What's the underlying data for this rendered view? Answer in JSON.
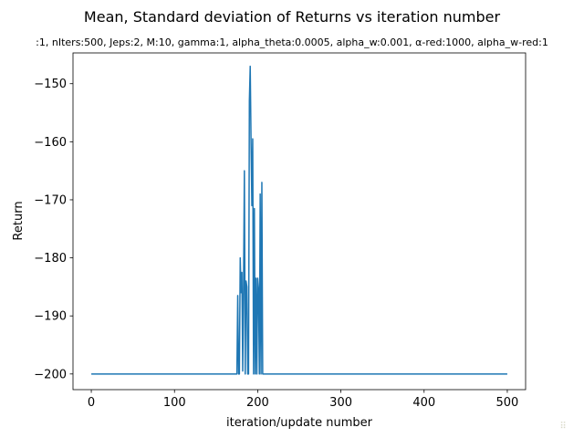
{
  "chart_data": {
    "type": "line",
    "title": "Mean, Standard deviation of Returns vs iteration number",
    "subtitle": ":1, nIters:500, Jeps:2, M:10, gamma:1, alpha_theta:0.0005, alpha_w:0.001, α-red:1000, alpha_w-red:1",
    "xlabel": "iteration/update number",
    "ylabel": "Return",
    "xlim": [
      -22,
      522
    ],
    "ylim": [
      -202.7,
      -144.7
    ],
    "xticks": [
      0,
      100,
      200,
      300,
      400,
      500
    ],
    "yticks": [
      -200,
      -190,
      -180,
      -170,
      -160,
      -150
    ],
    "xtick_labels": [
      "0",
      "100",
      "200",
      "300",
      "400",
      "500"
    ],
    "ytick_labels": [
      "−200",
      "−190",
      "−180",
      "−170",
      "−160",
      "−150"
    ],
    "grid": false,
    "series": [
      {
        "color": "#1f77b4",
        "x": [
          0,
          175,
          176,
          177,
          178,
          179,
          180,
          181,
          182,
          183,
          184,
          185,
          186,
          187,
          188,
          189,
          190,
          191,
          192,
          193,
          194,
          195,
          196,
          197,
          198,
          199,
          200,
          201,
          202,
          203,
          204,
          205,
          206,
          207,
          208,
          209,
          210,
          211,
          212,
          213,
          214,
          215,
          500
        ],
        "y": [
          -200,
          -200,
          -186.5,
          -200,
          -200,
          -180,
          -186,
          -182.5,
          -199.5,
          -184.5,
          -165,
          -200,
          -184,
          -185,
          -200,
          -200,
          -153,
          -147,
          -160,
          -171,
          -159.5,
          -200,
          -171.5,
          -200,
          -183.5,
          -200,
          -183.5,
          -185.5,
          -200,
          -169,
          -200,
          -167,
          -200,
          -200,
          -200,
          -200,
          -200,
          -200,
          -200,
          -200,
          -200,
          -200,
          -200
        ]
      }
    ]
  },
  "watermark": "⠿"
}
